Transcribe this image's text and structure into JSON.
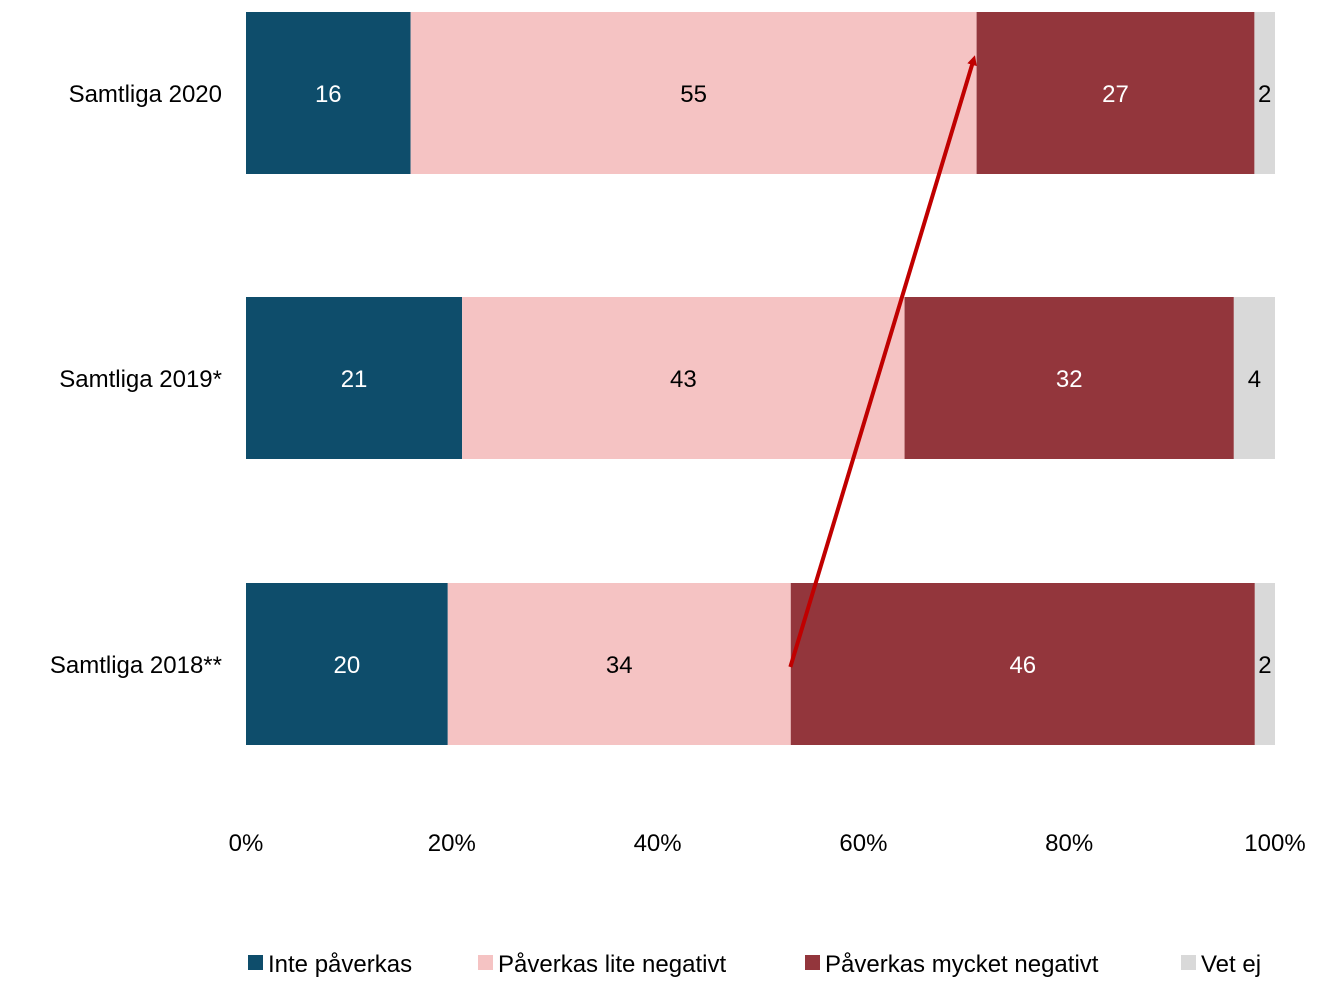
{
  "chart_data": {
    "type": "bar",
    "orientation": "horizontal",
    "stacked": true,
    "percent_stacked": true,
    "categories": [
      "Samtliga 2020",
      "Samtliga 2019*",
      "Samtliga 2018**"
    ],
    "series": [
      {
        "name": "Inte påverkas",
        "values": [
          16,
          21,
          20
        ],
        "color": "#0e4d6b",
        "label_color": "#ffffff"
      },
      {
        "name": "Påverkas lite negativt",
        "values": [
          55,
          43,
          34
        ],
        "color": "#f5c3c3",
        "label_color": "#000000"
      },
      {
        "name": "Påverkas mycket negativt",
        "values": [
          27,
          32,
          46
        ],
        "color": "#93363c",
        "label_color": "#ffffff"
      },
      {
        "name": "Vet ej",
        "values": [
          2,
          4,
          2
        ],
        "color": "#d9d9d9",
        "label_color": "#000000"
      }
    ],
    "xlim": [
      0,
      100
    ],
    "xticks": [
      "0%",
      "20%",
      "40%",
      "60%",
      "80%",
      "100%"
    ],
    "grid": false,
    "legend_position": "bottom",
    "annotation": {
      "type": "arrow",
      "color": "#c00000",
      "from": {
        "category": "Samtliga 2018**",
        "x": 52.9
      },
      "to": {
        "category": "Samtliga 2020",
        "x": 70.7
      }
    }
  }
}
